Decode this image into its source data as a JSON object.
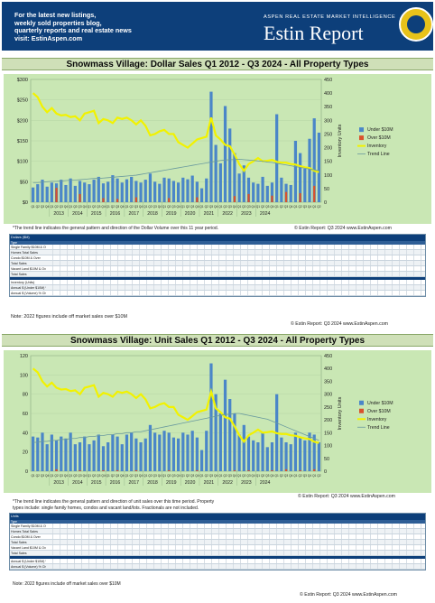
{
  "header": {
    "lines": [
      "For the latest new listings,",
      "weekly sold properties blog,",
      "quarterly reports and real estate news",
      "visit: EstinAspen.com"
    ],
    "tagline": "ASPEN REAL ESTATE MARKET INTELLIGENCE",
    "brand": "Estin Report"
  },
  "colors": {
    "navy": "#0d3f7a",
    "plot_bg": "#c9e7b4",
    "under": "#4a86c8",
    "over": "#d9522c",
    "inventory": "#f2f200",
    "trend": "#6a9a9e"
  },
  "chart_data": [
    {
      "type": "bar",
      "title": "Snowmass Village:  Dollar Sales Q1 2012 - Q3 2024 - All Property Types",
      "ylabel": "",
      "y2label": "Inventory Units",
      "ylim": [
        0,
        300
      ],
      "y2lim": [
        0,
        450
      ],
      "yticks": [
        "$0",
        "$50",
        "$100",
        "$150",
        "$200",
        "$250",
        "$300"
      ],
      "y2ticks": [
        "0",
        "50",
        "100",
        "150",
        "200",
        "250",
        "300",
        "350",
        "400",
        "450"
      ],
      "quarter_labels": [
        "Q1",
        "Q2",
        "Q3",
        "Q4"
      ],
      "years": [
        "2013",
        "2014",
        "2015",
        "2016",
        "2017",
        "2018",
        "2019",
        "2020",
        "2021",
        "2022",
        "2023",
        "2024"
      ],
      "legend": [
        "Under $10M",
        "Over $10M",
        "Inventory",
        "Trend Line"
      ],
      "legend_position": "right",
      "series": [
        {
          "name": "Under $10M",
          "values": [
            36,
            44,
            55,
            38,
            48,
            46,
            55,
            42,
            58,
            40,
            52,
            48,
            44,
            55,
            62,
            46,
            50,
            66,
            58,
            48,
            56,
            62,
            52,
            48,
            55,
            70,
            50,
            45,
            60,
            58,
            52,
            48,
            60,
            56,
            65,
            50,
            34,
            58,
            270,
            140,
            95,
            235,
            180,
            120,
            70,
            90,
            60,
            48,
            45,
            62,
            40,
            48,
            215,
            60,
            45,
            42,
            150,
            120,
            82,
            155,
            205,
            170
          ]
        },
        {
          "name": "Over $10M",
          "values": [
            0,
            0,
            0,
            0,
            0,
            35,
            0,
            0,
            0,
            0,
            20,
            0,
            0,
            0,
            0,
            10,
            0,
            0,
            8,
            0,
            0,
            0,
            12,
            0,
            0,
            0,
            0,
            0,
            0,
            10,
            0,
            0,
            0,
            0,
            0,
            12,
            0,
            0,
            0,
            0,
            0,
            0,
            0,
            15,
            0,
            0,
            20,
            0,
            0,
            0,
            0,
            16,
            0,
            0,
            25,
            0,
            0,
            22,
            0,
            0,
            40,
            0
          ]
        },
        {
          "name": "Inventory",
          "values": [
            400,
            385,
            350,
            330,
            345,
            325,
            318,
            320,
            312,
            315,
            300,
            325,
            330,
            335,
            290,
            305,
            300,
            290,
            310,
            305,
            310,
            300,
            285,
            300,
            280,
            245,
            250,
            260,
            265,
            250,
            250,
            220,
            210,
            200,
            215,
            230,
            235,
            240,
            310,
            245,
            230,
            210,
            205,
            175,
            140,
            115,
            140,
            150,
            162,
            150,
            152,
            155,
            148,
            145,
            145,
            140,
            138,
            132,
            128,
            125,
            115,
            110
          ]
        },
        {
          "name": "Trend Line",
          "values": [
            48,
            48,
            49,
            50,
            51,
            51,
            52,
            53,
            54,
            54,
            55,
            56,
            57,
            58,
            58,
            59,
            60,
            61,
            62,
            63,
            64,
            65,
            66,
            68,
            70,
            72,
            74,
            76,
            78,
            80,
            82,
            84,
            86,
            88,
            90,
            92,
            94,
            96,
            98,
            100,
            102,
            103,
            104,
            104,
            105,
            104,
            103,
            102,
            101,
            100,
            98,
            97,
            95,
            93,
            91,
            89,
            87,
            85,
            83,
            81,
            79,
            77
          ]
        }
      ],
      "note": "*The trend line indicates the general pattern and direction of the Dollar Volume over this 11 year period.",
      "credit_inline": "© Estin Report: Q3 2024 www.EstinAspen.com",
      "footnote": "Note: 2022 figures include off market sales over $10M",
      "credit": "© Estin Report: Q3 2024 www.EstinAspen.com"
    },
    {
      "type": "bar",
      "title": "Snowmass Village:  Unit Sales Q1 2012 - Q3 2024 - All Property Types",
      "ylabel": "",
      "y2label": "Inventory Units",
      "ylim": [
        0,
        120
      ],
      "y2lim": [
        0,
        450
      ],
      "yticks": [
        "0",
        "20",
        "40",
        "60",
        "80",
        "100",
        "120"
      ],
      "y2ticks": [
        "0",
        "50",
        "100",
        "150",
        "200",
        "250",
        "300",
        "350",
        "400",
        "450"
      ],
      "quarter_labels": [
        "Q1",
        "Q2",
        "Q3",
        "Q4"
      ],
      "years": [
        "2013",
        "2014",
        "2015",
        "2016",
        "2017",
        "2018",
        "2019",
        "2020",
        "2021",
        "2022",
        "2023",
        "2024"
      ],
      "legend": [
        "Under $10M",
        "Over $10M",
        "Inventory",
        "Trend Line"
      ],
      "legend_position": "right",
      "series": [
        {
          "name": "Under $10M",
          "values": [
            36,
            35,
            40,
            28,
            38,
            32,
            36,
            34,
            40,
            28,
            30,
            36,
            28,
            32,
            38,
            26,
            30,
            38,
            36,
            28,
            38,
            40,
            34,
            30,
            34,
            48,
            40,
            38,
            42,
            40,
            35,
            34,
            40,
            38,
            42,
            35,
            22,
            42,
            112,
            80,
            60,
            95,
            75,
            60,
            38,
            48,
            36,
            32,
            30,
            40,
            25,
            30,
            80,
            35,
            30,
            28,
            40,
            35,
            32,
            40,
            38,
            30
          ]
        },
        {
          "name": "Over $10M",
          "values": [
            0,
            0,
            0,
            0,
            0,
            2,
            0,
            0,
            0,
            0,
            1,
            0,
            0,
            0,
            0,
            1,
            0,
            0,
            1,
            0,
            0,
            0,
            1,
            0,
            0,
            0,
            0,
            0,
            0,
            1,
            0,
            0,
            0,
            0,
            0,
            1,
            0,
            0,
            0,
            0,
            0,
            0,
            0,
            1,
            0,
            0,
            1,
            0,
            0,
            0,
            0,
            1,
            0,
            0,
            2,
            0,
            0,
            1,
            0,
            0,
            2,
            0
          ]
        },
        {
          "name": "Inventory",
          "values": [
            400,
            385,
            350,
            330,
            345,
            325,
            318,
            320,
            312,
            315,
            300,
            325,
            330,
            335,
            290,
            305,
            300,
            290,
            310,
            305,
            310,
            300,
            285,
            300,
            280,
            245,
            250,
            260,
            265,
            250,
            250,
            220,
            210,
            200,
            215,
            230,
            235,
            240,
            310,
            245,
            230,
            210,
            205,
            175,
            140,
            115,
            140,
            150,
            162,
            150,
            152,
            155,
            148,
            145,
            145,
            140,
            138,
            132,
            128,
            125,
            115,
            110
          ]
        },
        {
          "name": "Trend Line",
          "values": [
            30,
            30,
            31,
            31,
            32,
            32,
            33,
            33,
            34,
            34,
            35,
            35,
            36,
            36,
            37,
            37,
            38,
            38,
            39,
            39,
            40,
            40,
            41,
            41,
            42,
            43,
            44,
            45,
            46,
            47,
            48,
            49,
            50,
            51,
            52,
            53,
            54,
            55,
            56,
            57,
            58,
            59,
            59,
            60,
            60,
            59,
            58,
            57,
            56,
            55,
            54,
            52,
            50,
            48,
            46,
            44,
            42,
            40,
            38,
            36,
            34,
            32
          ]
        }
      ],
      "note_lines": [
        "*The trend line indicates the general pattern and direction of unit sales over this time period. Property",
        "types include: single family homes, condos and vacant land/lots. Fractionals are not included."
      ],
      "credit_inline": "© Estin Report: Q3 2024 www.EstinAspen.com",
      "footnote": "Note: 2022 figures include off market sales over $10M",
      "credit": "© Estin Report: Q3 2024 www.EstinAspen.com"
    }
  ],
  "tables": {
    "dollar": {
      "rows": [
        {
          "label": "Dollars ($M)",
          "style": "head"
        },
        {
          "label": "Type",
          "style": "sub"
        },
        {
          "label": "Single Family $10M & Over"
        },
        {
          "label": "Homes  Total Sales",
          "alt": true
        },
        {
          "label": "Condo  $10M & Over"
        },
        {
          "label": "Total Sales",
          "alt": true
        },
        {
          "label": "Vacant Land $10M & Over"
        },
        {
          "label": "Total Sales",
          "alt": true
        },
        {
          "label": "",
          "style": "dark"
        },
        {
          "label": "Inventory (Units)"
        },
        {
          "label": "Annual $ (Under $10M) % Chg",
          "alt": true
        },
        {
          "label": "Annual $ (Volume) % Chg"
        }
      ]
    },
    "unit": {
      "rows": [
        {
          "label": "Units",
          "style": "head"
        },
        {
          "label": "Type",
          "style": "sub"
        },
        {
          "label": "Single Family $10M & Over"
        },
        {
          "label": "Homes  Total Sales",
          "alt": true
        },
        {
          "label": "Condo  $10M & Over"
        },
        {
          "label": "Total Sales",
          "alt": true
        },
        {
          "label": "Vacant Land $10M & Over"
        },
        {
          "label": "Total Sales",
          "alt": true
        },
        {
          "label": "",
          "style": "dark"
        },
        {
          "label": "Annual $ (Under $10M) % Chg"
        },
        {
          "label": "Annual $ (Volume) % Chg",
          "alt": true
        }
      ]
    }
  }
}
